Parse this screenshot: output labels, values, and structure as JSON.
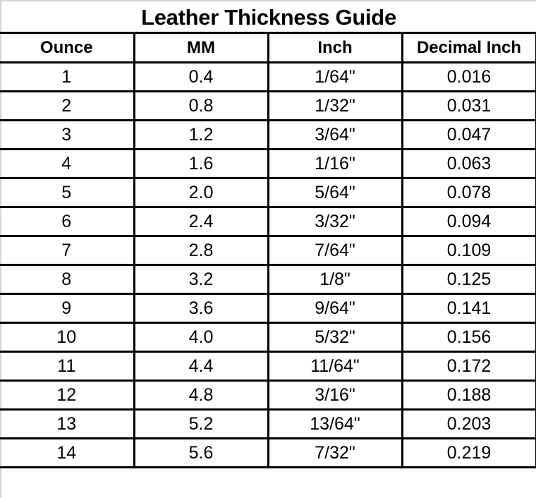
{
  "title": "Leather Thickness Guide",
  "columns": [
    "Ounce",
    "MM",
    "Inch",
    "Decimal Inch"
  ],
  "rows": [
    [
      "1",
      "0.4",
      "1/64\"",
      "0.016"
    ],
    [
      "2",
      "0.8",
      "1/32\"",
      "0.031"
    ],
    [
      "3",
      "1.2",
      "3/64\"",
      "0.047"
    ],
    [
      "4",
      "1.6",
      "1/16\"",
      "0.063"
    ],
    [
      "5",
      "2.0",
      "5/64\"",
      "0.078"
    ],
    [
      "6",
      "2.4",
      "3/32\"",
      "0.094"
    ],
    [
      "7",
      "2.8",
      "7/64\"",
      "0.109"
    ],
    [
      "8",
      "3.2",
      "1/8\"",
      "0.125"
    ],
    [
      "9",
      "3.6",
      "9/64\"",
      "0.141"
    ],
    [
      "10",
      "4.0",
      "5/32\"",
      "0.156"
    ],
    [
      "11",
      "4.4",
      "11/64\"",
      "0.172"
    ],
    [
      "12",
      "4.8",
      "3/16\"",
      "0.188"
    ],
    [
      "13",
      "5.2",
      "13/64\"",
      "0.203"
    ],
    [
      "14",
      "5.6",
      "7/32\"",
      "0.219"
    ]
  ]
}
